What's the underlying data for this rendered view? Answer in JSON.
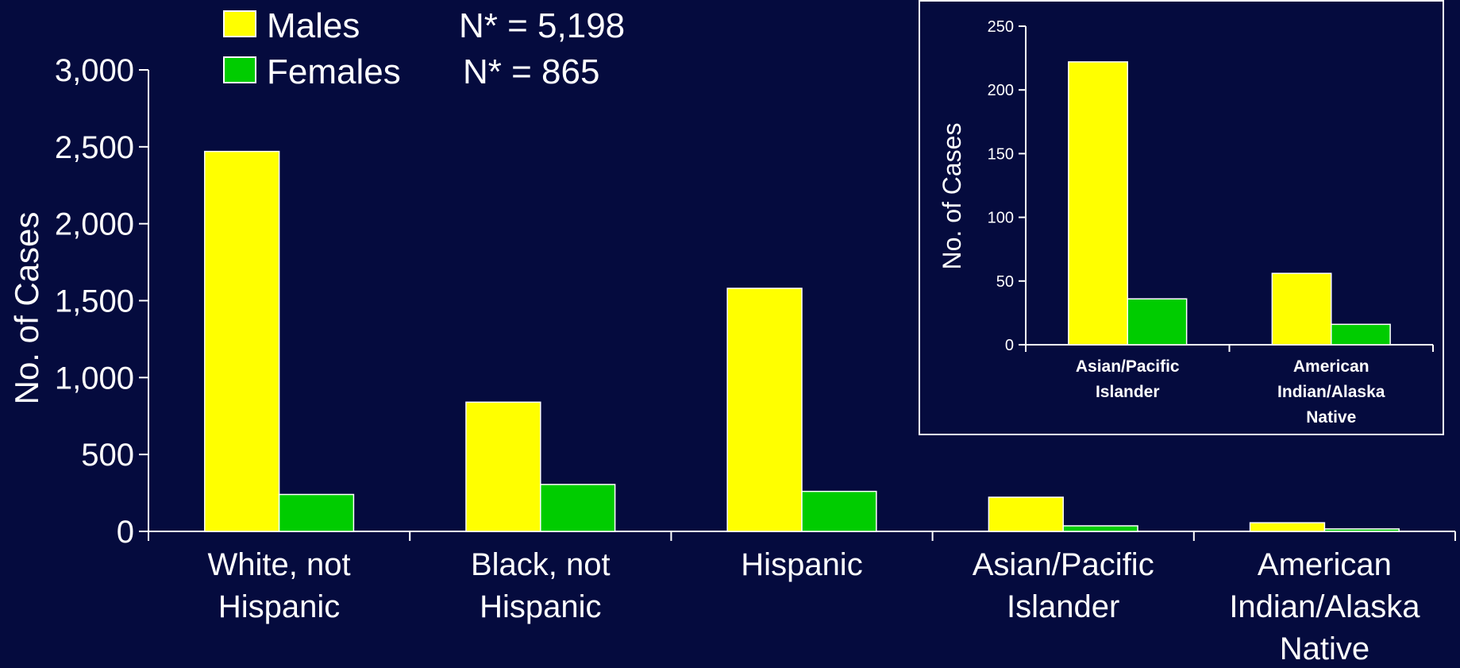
{
  "colors": {
    "background": "#050b3e",
    "males": "#ffff00",
    "females": "#00cc00",
    "axis": "#ffffff",
    "text": "#ffffff"
  },
  "legend": {
    "items": [
      {
        "label": "Males",
        "n": "N* = 5,198",
        "color_key": "males"
      },
      {
        "label": "Females",
        "n": "N* = 865",
        "color_key": "females"
      }
    ]
  },
  "chart_data": [
    {
      "type": "bar",
      "ylabel": "No. of Cases",
      "ylim": [
        0,
        3000
      ],
      "yticks": [
        0,
        500,
        1000,
        1500,
        2000,
        2500,
        3000
      ],
      "ytick_labels": [
        "0",
        "500",
        "1,000",
        "1,500",
        "2,000",
        "2,500",
        "3,000"
      ],
      "categories": [
        [
          "White, not",
          "Hispanic"
        ],
        [
          "Black, not",
          "Hispanic"
        ],
        [
          "Hispanic"
        ],
        [
          "Asian/Pacific",
          "Islander"
        ],
        [
          "American",
          "Indian/Alaska",
          "Native"
        ]
      ],
      "series": [
        {
          "name": "Males",
          "values": [
            2470,
            840,
            1580,
            222,
            56
          ]
        },
        {
          "name": "Females",
          "values": [
            240,
            305,
            260,
            36,
            16
          ]
        }
      ],
      "legend_position": "top-left"
    },
    {
      "type": "bar",
      "ylabel": "No. of Cases",
      "ylim": [
        0,
        250
      ],
      "yticks": [
        0,
        50,
        100,
        150,
        200,
        250
      ],
      "ytick_labels": [
        "0",
        "50",
        "100",
        "150",
        "200",
        "250"
      ],
      "categories": [
        [
          "Asian/Pacific",
          "Islander"
        ],
        [
          "American",
          "Indian/Alaska",
          "Native"
        ]
      ],
      "series": [
        {
          "name": "Males",
          "values": [
            222,
            56
          ]
        },
        {
          "name": "Females",
          "values": [
            36,
            16
          ]
        }
      ]
    }
  ]
}
